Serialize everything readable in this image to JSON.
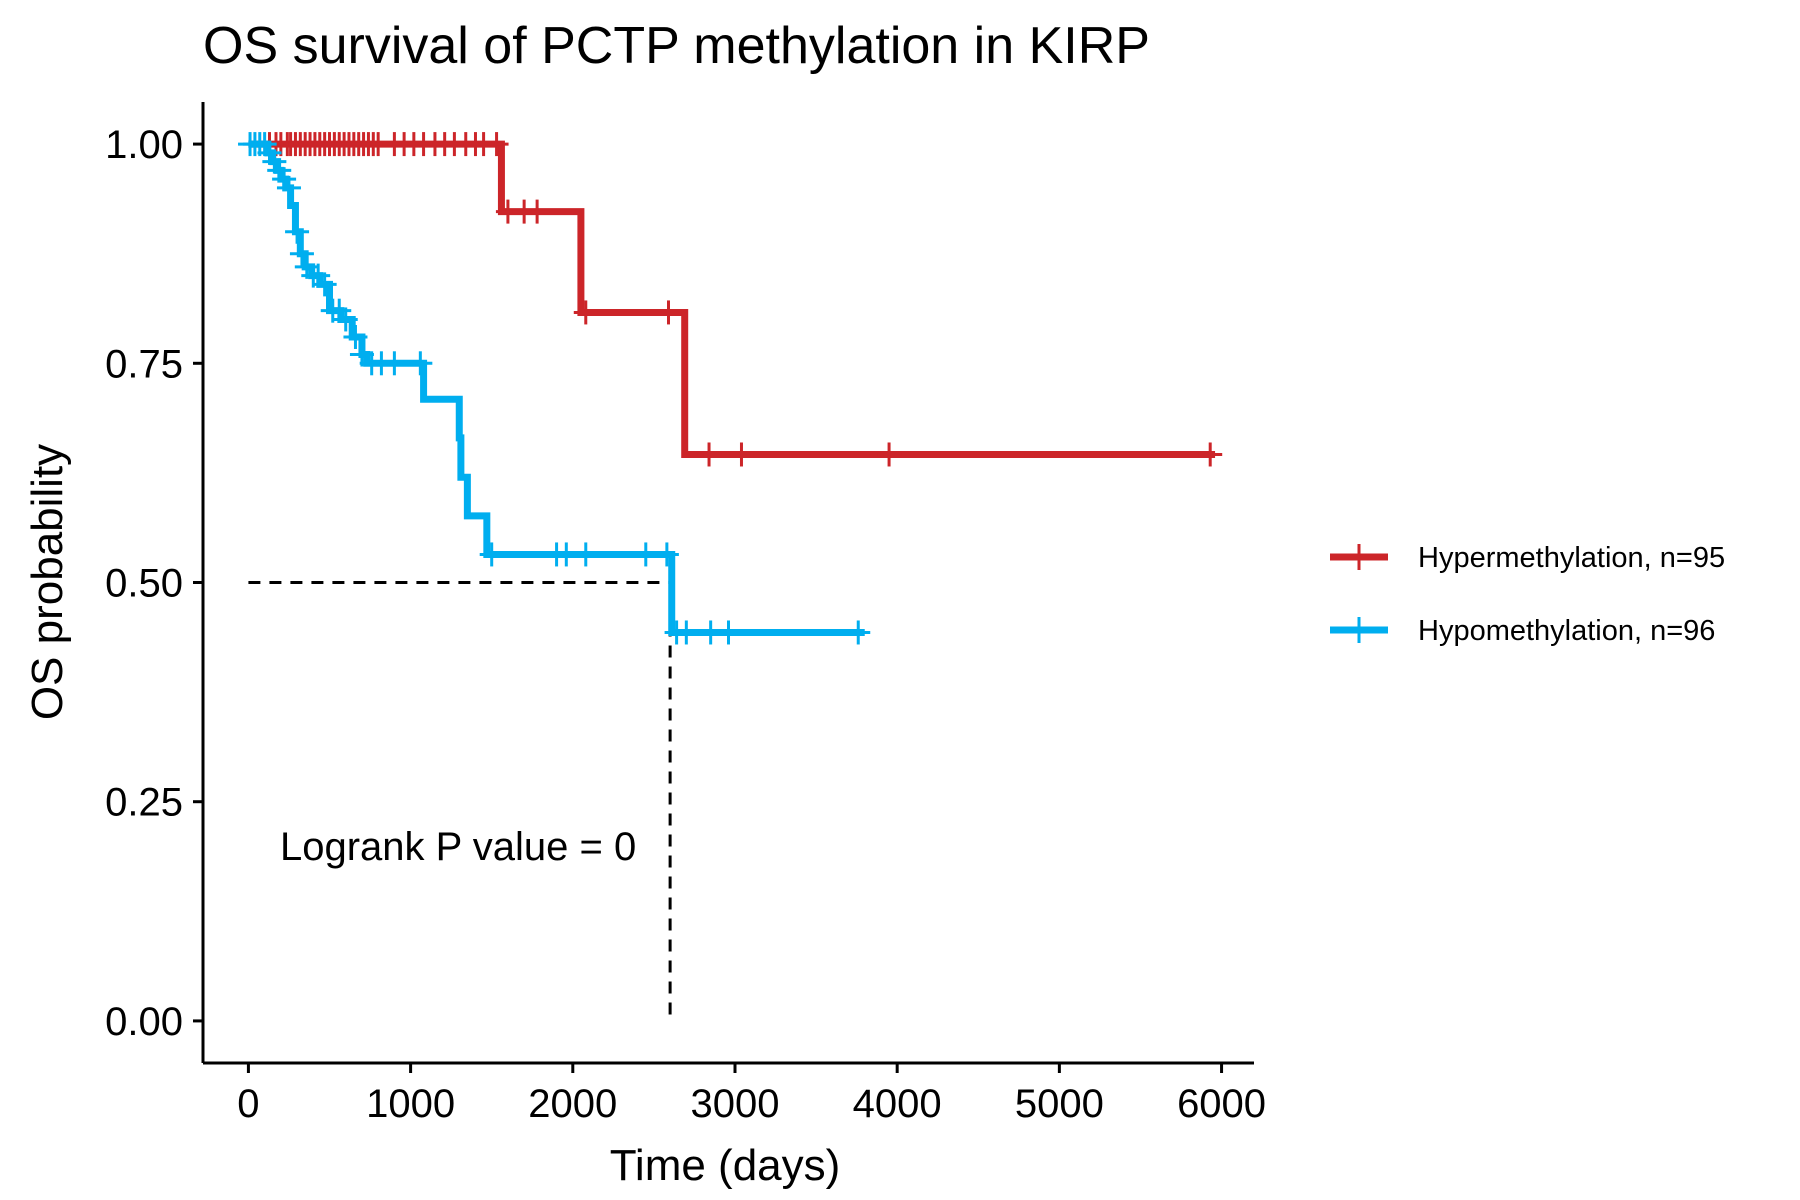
{
  "chart_data": {
    "type": "line",
    "subtype": "kaplan-meier",
    "title": "OS survival of PCTP methylation in KIRP",
    "xlabel": "Time (days)",
    "ylabel": "OS probability",
    "xlim": [
      -280,
      6200
    ],
    "ylim": [
      -0.048,
      1.048
    ],
    "xticks": [
      0,
      1000,
      2000,
      3000,
      4000,
      5000,
      6000
    ],
    "xtick_labels": [
      "0",
      "1000",
      "2000",
      "3000",
      "4000",
      "5000",
      "6000"
    ],
    "yticks": [
      0,
      0.25,
      0.5,
      0.75,
      1.0
    ],
    "ytick_labels": [
      "0.00",
      "0.25",
      "0.50",
      "0.75",
      "1.00"
    ],
    "grid": false,
    "legend_position": "right",
    "annotation": "Logrank P value = 0",
    "median_reference": {
      "y": 0.5,
      "x": 2600
    },
    "series": [
      {
        "name": "Hypermethylation, n=95",
        "color": "#CC2529",
        "steps": [
          [
            0,
            1.0
          ],
          [
            1560,
            0.923
          ],
          [
            2050,
            0.808
          ],
          [
            2690,
            0.646
          ],
          [
            5960,
            0.646
          ]
        ],
        "censor_times": [
          130,
          170,
          200,
          240,
          260,
          290,
          320,
          350,
          380,
          410,
          440,
          470,
          500,
          530,
          560,
          590,
          620,
          650,
          680,
          710,
          740,
          770,
          800,
          900,
          960,
          1020,
          1080,
          1150,
          1210,
          1270,
          1340,
          1400,
          1450,
          1530,
          1600,
          1700,
          1780,
          2080,
          2590,
          2840,
          3040,
          3950,
          5930
        ]
      },
      {
        "name": "Hypomethylation, n=96",
        "color": "#00AEEF",
        "steps": [
          [
            0,
            1.0
          ],
          [
            120,
            0.99
          ],
          [
            150,
            0.98
          ],
          [
            180,
            0.97
          ],
          [
            200,
            0.96
          ],
          [
            230,
            0.95
          ],
          [
            260,
            0.93
          ],
          [
            290,
            0.9
          ],
          [
            320,
            0.875
          ],
          [
            350,
            0.86
          ],
          [
            390,
            0.85
          ],
          [
            440,
            0.84
          ],
          [
            500,
            0.81
          ],
          [
            570,
            0.8
          ],
          [
            640,
            0.78
          ],
          [
            700,
            0.76
          ],
          [
            730,
            0.75
          ],
          [
            1080,
            0.709
          ],
          [
            1300,
            0.665
          ],
          [
            1310,
            0.62
          ],
          [
            1350,
            0.576
          ],
          [
            1470,
            0.532
          ],
          [
            2610,
            0.443
          ],
          [
            3800,
            0.443
          ]
        ],
        "censor_times": [
          10,
          40,
          70,
          100,
          130,
          160,
          190,
          220,
          250,
          300,
          330,
          360,
          400,
          430,
          470,
          520,
          560,
          600,
          660,
          700,
          760,
          820,
          900,
          1060,
          1500,
          1900,
          1960,
          2080,
          2450,
          2580,
          2640,
          2700,
          2850,
          2960,
          3760
        ]
      }
    ]
  }
}
